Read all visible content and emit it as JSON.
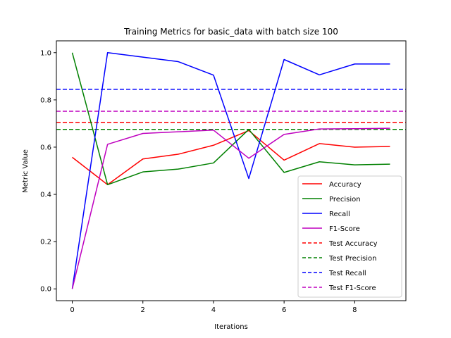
{
  "chart_data": {
    "type": "line",
    "title": "Training Metrics for basic_data with batch size 100",
    "xlabel": "Iterations",
    "ylabel": "Metric Value",
    "xlim": [
      -0.45,
      9.45
    ],
    "ylim": [
      -0.05,
      1.05
    ],
    "x": [
      0,
      1,
      2,
      3,
      4,
      5,
      6,
      7,
      8,
      9
    ],
    "xticks": [
      0,
      2,
      4,
      6,
      8
    ],
    "yticks": [
      0.0,
      0.2,
      0.4,
      0.6,
      0.8,
      1.0
    ],
    "xtick_labels": [
      "0",
      "2",
      "4",
      "6",
      "8"
    ],
    "ytick_labels": [
      "0.0",
      "0.2",
      "0.4",
      "0.6",
      "0.8",
      "1.0"
    ],
    "series": [
      {
        "name": "Accuracy",
        "color": "#ff0000",
        "style": "solid",
        "values": [
          0.557,
          0.441,
          0.55,
          0.57,
          0.608,
          0.67,
          0.545,
          0.615,
          0.6,
          0.603
        ]
      },
      {
        "name": "Precision",
        "color": "#008000",
        "style": "solid",
        "values": [
          1.0,
          0.441,
          0.495,
          0.507,
          0.533,
          0.675,
          0.493,
          0.538,
          0.525,
          0.528
        ]
      },
      {
        "name": "Recall",
        "color": "#0000ff",
        "style": "solid",
        "values": [
          0.0,
          1.0,
          0.981,
          0.962,
          0.905,
          0.467,
          0.971,
          0.906,
          0.952,
          0.952
        ]
      },
      {
        "name": "F1-Score",
        "color": "#bf00bf",
        "style": "solid",
        "values": [
          0.0,
          0.612,
          0.658,
          0.665,
          0.672,
          0.553,
          0.654,
          0.677,
          0.678,
          0.68
        ]
      }
    ],
    "reference_lines": [
      {
        "name": "Test Accuracy",
        "color": "#ff0000",
        "style": "dashed",
        "value": 0.705
      },
      {
        "name": "Test Precision",
        "color": "#008000",
        "style": "dashed",
        "value": 0.675
      },
      {
        "name": "Test Recall",
        "color": "#0000ff",
        "style": "dashed",
        "value": 0.845
      },
      {
        "name": "Test F1-Score",
        "color": "#bf00bf",
        "style": "dashed",
        "value": 0.752
      }
    ],
    "legend_position": "lower-right",
    "grid": false
  }
}
